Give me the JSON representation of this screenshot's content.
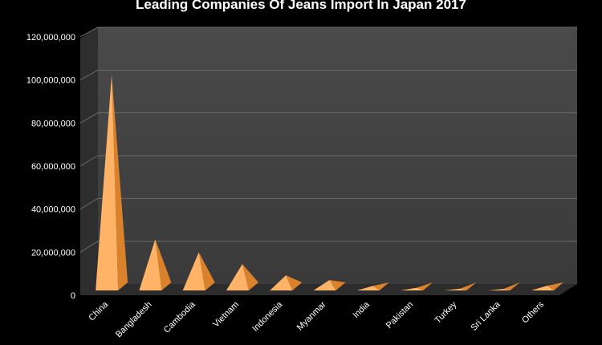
{
  "chart_data": {
    "type": "bar",
    "style": "3d-pyramid",
    "title": "Leading Companies Of Jeans Import In Japan 2017",
    "xlabel": "",
    "ylabel": "",
    "categories": [
      "China",
      "Bangladesh",
      "Cambodia",
      "Vietnam",
      "Indonesia",
      "Myanmar",
      "India",
      "Pakistan",
      "Turkey",
      "Sri Lanka",
      "Others"
    ],
    "values": [
      101000000,
      24500000,
      18500000,
      13000000,
      7800000,
      5600000,
      2900000,
      2000000,
      1600000,
      1500000,
      3000000
    ],
    "ylim": [
      0,
      120000000
    ],
    "yticks": [
      "0",
      "20,000,000",
      "40,000,000",
      "60,000,000",
      "80,000,000",
      "100,000,000",
      "120,000,000"
    ],
    "ytick_values": [
      0,
      20000000,
      40000000,
      60000000,
      80000000,
      100000000,
      120000000
    ],
    "grid": true,
    "legend": "none"
  },
  "colors": {
    "background": "#000000",
    "plot_wall": "#3f3f3f",
    "plot_floor": "#2c2c2c",
    "gridline": "#6a6a6a",
    "bar_light": "#ffb366",
    "bar_dark": "#d9822b",
    "text": "#ffffff"
  }
}
